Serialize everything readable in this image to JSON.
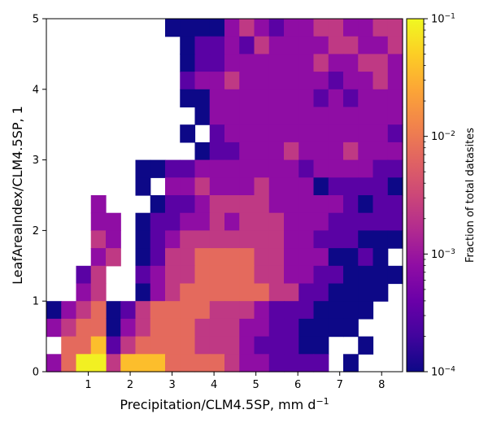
{
  "chart_data": {
    "type": "heatmap",
    "xlabel_main": "Precipitation/CLM4.5SP,  mm d",
    "xlabel_sup": "−1",
    "ylabel": "LeafAreaIndex/CLM4.5SP,  1",
    "colorbar_label": "Fraction of total datasites",
    "x_range": [
      0,
      8.5
    ],
    "y_range": [
      0,
      5
    ],
    "x_ticks": [
      1,
      2,
      3,
      4,
      5,
      6,
      7,
      8
    ],
    "y_ticks": [
      0,
      1,
      2,
      3,
      4,
      5
    ],
    "x_tick_labels": [
      "1",
      "2",
      "3",
      "4",
      "5",
      "6",
      "7",
      "8"
    ],
    "y_tick_labels": [
      "0",
      "1",
      "2",
      "3",
      "4",
      "5"
    ],
    "colorbar_ticks": [
      {
        "value": 0.0001,
        "base": "10",
        "exp": "−4"
      },
      {
        "value": 0.001,
        "base": "10",
        "exp": "−3"
      },
      {
        "value": 0.01,
        "base": "10",
        "exp": "−2"
      },
      {
        "value": 0.1,
        "base": "10",
        "exp": "−1"
      }
    ],
    "color_scale": "log",
    "vmin": 0.0001,
    "vmax": 0.1,
    "colormap": "plasma",
    "grid": false,
    "bins": {
      "nx": 24,
      "ny": 20
    },
    "row_order": "top-to-bottom (first row is LAI 4.75-5.0)",
    "log_value_grid_note_free": "",
    "z_log10": [
      "........ 7  7  7  7  5  4  5  6  5  5  4  4  5  5  4  4  5  4  3",
      ".........    7  6  6  5  6  4  5  5  5  5  4  4  5  5  4  4  4  4",
      ".........    7  6  6  5  5  5  5  5  5  4  5  5  4  4  5  . 5  6",
      ".........  6  5  5  4  5  5  5  5  5  5  6  5  5  4  5  5  6  5",
      ".........  7  7  5  5  5  5  5  5  5  6  5  6  5  5  5  6  6  5",
      ".........  . 7  5  5  5  5  5  5  5  5  5  5  5  5  5  5  7  6",
      ".........  7  . 6  5  5  5  5  5  5  5  5  5  5  5  6  5  5  5  .",
      "........ .  . 7  6  6  5  5  5  4  5  5  5  4  5  5  5  5  5  6",
      "......  7  7  6  6  5  5  5  5  5  5  5  6  5  5  5  5  6  6  6",
      "......  7  .  5  5  4  5  5  5  4  5  5  5  7  6  6  6  6  7  7",
      "....... 7  6  6  5  4  4  4  4  5  5  5  5  5  6  7  6  6  7  6",
      "......  7  6  6  5  5  4  5  4  4  4  5  5  5  6  6  6  6  6  7",
      "......  7  6  5  4  4  4  4  4  4  4  5  5  6  6  6  7  7  7  7",
      "......  7  6  4  4  3  3  3  3  4  4  5  5  5  7  7  6  7  .  .",
      "......  6  5  4  4  3  3  3  3  4  4  5  5  6  6  7  7  7  7  .",
      "......  7  5  4  3  3  3  3  3  3  4  4  6  6  7  7  7  7  .  .",
      "....  7  6  4  3  3  3  3  4  4  4  5  6  6  6  7  7  7  7  .",
      "....  7  5  4  3  3  3  4  4  4  5  5  6  6  7  7  7  7  .  .",
      "....  6  4  3  3  3  3  4  4  4  5  6  6  6  7  7  .  .  7  .",
      "....  4  2  2  2  3  3  3  3  4  5  5  6  6  6  6  .  7  .  ."
    ]
  }
}
